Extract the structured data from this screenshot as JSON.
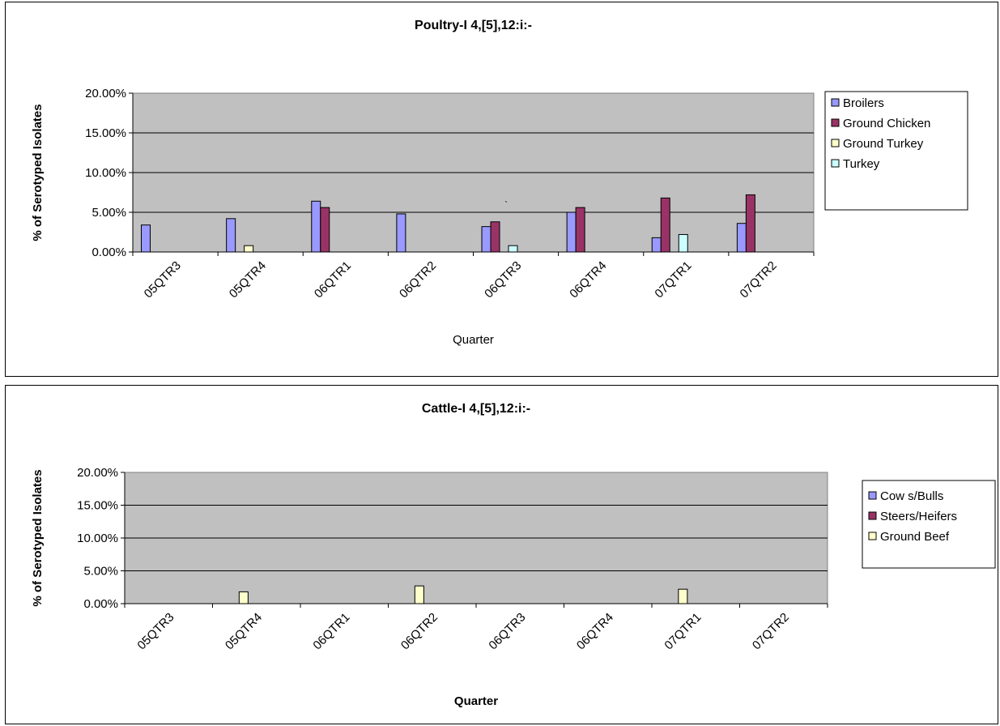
{
  "chart_data": [
    {
      "type": "bar",
      "title": "Poultry-I 4,[5],12:i:-",
      "xlabel": "Quarter",
      "ylabel": "% of Serotyped Isolates",
      "ylim": [
        0,
        0.2
      ],
      "yticks": [
        "0.00%",
        "5.00%",
        "10.00%",
        "15.00%",
        "20.00%"
      ],
      "grid": true,
      "legend_position": "right",
      "categories": [
        "05QTR3",
        "05QTR4",
        "06QTR1",
        "06QTR2",
        "06QTR3",
        "06QTR4",
        "07QTR1",
        "07QTR2"
      ],
      "annotation": "`",
      "series": [
        {
          "name": "Broilers",
          "color": "#9999FF",
          "values": [
            0.034,
            0.042,
            0.064,
            0.048,
            0.032,
            0.05,
            0.018,
            0.036
          ]
        },
        {
          "name": "Ground Chicken",
          "color": "#993366",
          "values": [
            0,
            0,
            0.056,
            0,
            0.038,
            0.056,
            0.068,
            0.072
          ]
        },
        {
          "name": "Ground Turkey",
          "color": "#FFFFCC",
          "values": [
            0,
            0.008,
            0,
            0,
            0,
            0,
            0,
            0
          ]
        },
        {
          "name": "Turkey",
          "color": "#CCFFFF",
          "values": [
            0,
            0,
            0,
            0,
            0.008,
            0,
            0.022,
            0
          ]
        }
      ]
    },
    {
      "type": "bar",
      "title": "Cattle-I 4,[5],12:i:-",
      "xlabel": "Quarter",
      "ylabel": "% of Serotyped Isolates",
      "ylim": [
        0,
        0.2
      ],
      "yticks": [
        "0.00%",
        "5.00%",
        "10.00%",
        "15.00%",
        "20.00%"
      ],
      "grid": true,
      "legend_position": "right",
      "categories": [
        "05QTR3",
        "05QTR4",
        "06QTR1",
        "06QTR2",
        "06QTR3",
        "06QTR4",
        "07QTR1",
        "07QTR2"
      ],
      "series": [
        {
          "name": "Cow s/Bulls",
          "color": "#9999FF",
          "values": [
            0,
            0,
            0,
            0,
            0,
            0,
            0,
            0
          ]
        },
        {
          "name": "Steers/Heifers",
          "color": "#993366",
          "values": [
            0,
            0,
            0,
            0,
            0,
            0,
            0,
            0
          ]
        },
        {
          "name": "Ground Beef",
          "color": "#FFFFCC",
          "values": [
            0,
            0.018,
            0,
            0.027,
            0,
            0,
            0.022,
            0
          ]
        }
      ]
    }
  ]
}
